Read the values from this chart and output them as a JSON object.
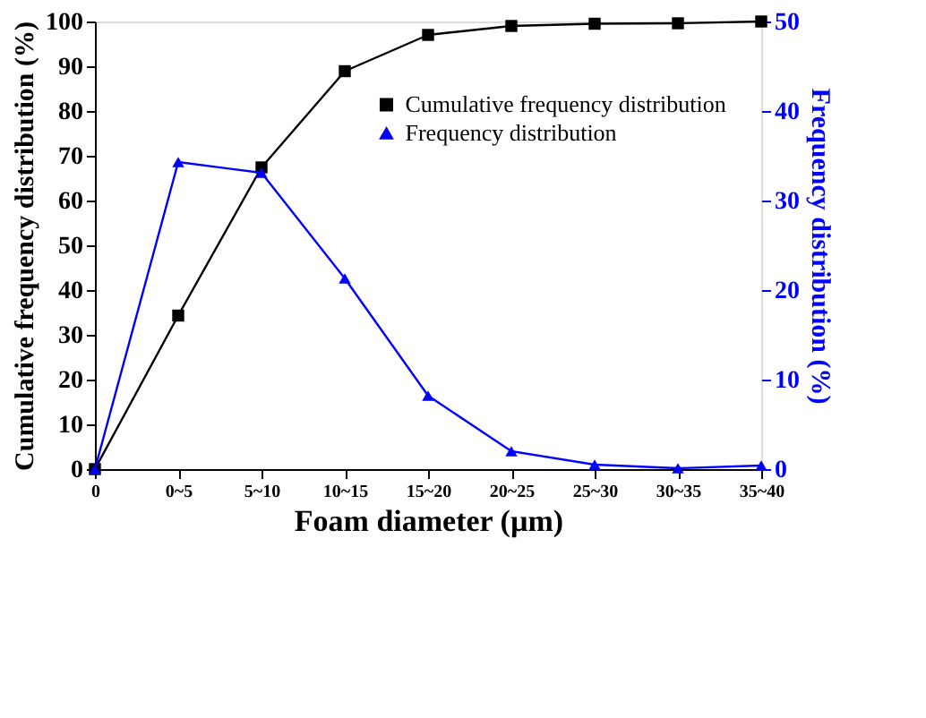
{
  "chart_data": {
    "type": "line",
    "xlabel": "Foam diameter (µm)",
    "ylabel": "Cumulative frequency distribution (%)",
    "y2label": "Frequency distribution (%)",
    "categories": [
      "0",
      "0~5",
      "5~10",
      "10~15",
      "15~20",
      "20~25",
      "25~30",
      "30~35",
      "35~40"
    ],
    "series": [
      {
        "name": "Cumulative frequency distribution",
        "color": "#000000",
        "marker": "square",
        "values": [
          0,
          34.3,
          67.4,
          88.9,
          97.0,
          99.0,
          99.5,
          99.6,
          100
        ]
      },
      {
        "name": "Frequency distribution",
        "color": "#0000ff",
        "marker": "triangle",
        "axis": "y2",
        "values": [
          0,
          34.3,
          33.1,
          21.3,
          8.2,
          2.0,
          0.5,
          0.1,
          0.4
        ]
      }
    ],
    "ylim": [
      0,
      100
    ],
    "yticks": [
      0,
      10,
      20,
      30,
      40,
      50,
      60,
      70,
      80,
      90,
      100
    ],
    "y2lim": [
      0,
      50
    ],
    "y2ticks": [
      0,
      10,
      20,
      30,
      40,
      50
    ],
    "grid": false,
    "legend": "top right",
    "line_style": "solid"
  }
}
